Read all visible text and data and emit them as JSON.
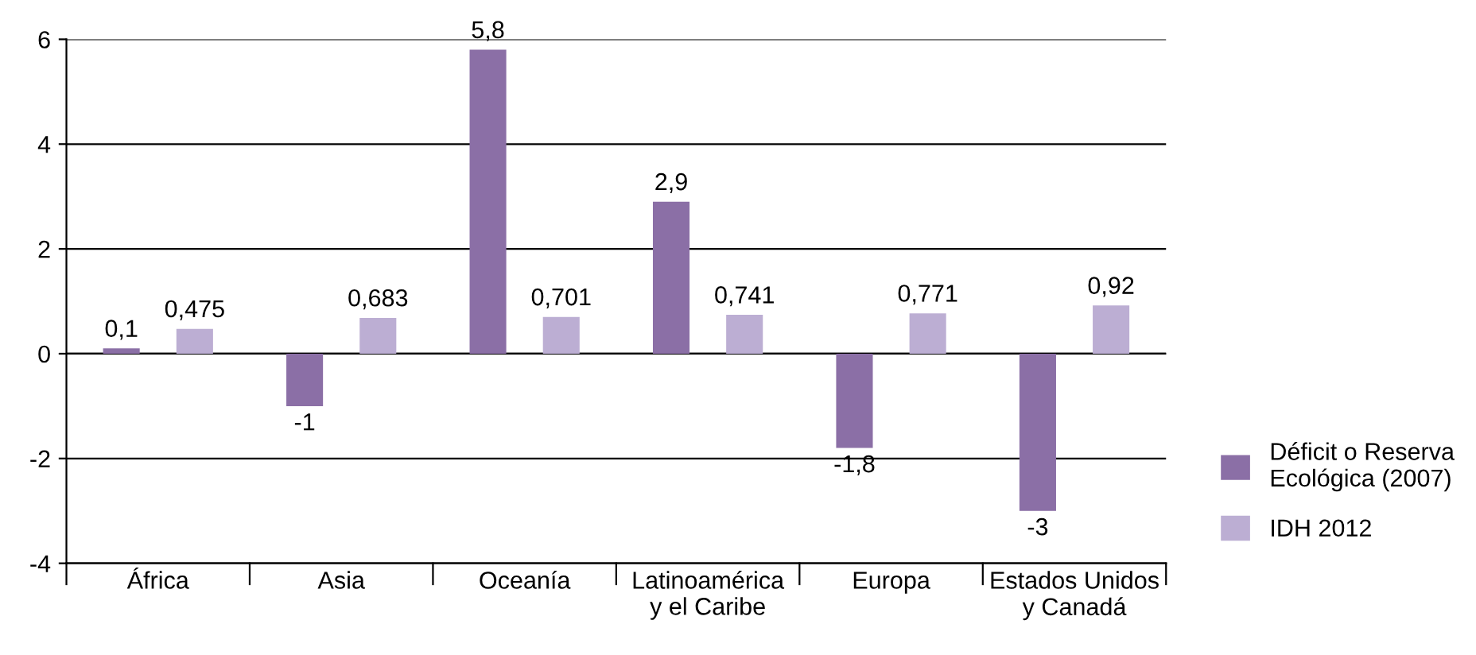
{
  "chart_data": {
    "type": "bar",
    "categories": [
      "África",
      "Asia",
      "Oceanía",
      "Latinoamérica\ny el Caribe",
      "Europa",
      "Estados Unidos\ny Canadá"
    ],
    "series": [
      {
        "name": "Déficit o Reserva\nEcológica (2007)",
        "color": "#8b6fa6",
        "values": [
          0.1,
          -1,
          5.8,
          2.9,
          -1.8,
          -3
        ],
        "value_labels": [
          "0,1",
          "-1",
          "5,8",
          "2,9",
          "-1,8",
          "-3"
        ]
      },
      {
        "name": "IDH 2012",
        "color": "#bcaed3",
        "values": [
          0.475,
          0.683,
          0.701,
          0.741,
          0.771,
          0.92
        ],
        "value_labels": [
          "0,475",
          "0,683",
          "0,701",
          "0,741",
          "0,771",
          "0,92"
        ]
      }
    ],
    "ylim": [
      -4,
      6
    ],
    "yticks": [
      -4,
      -2,
      0,
      2,
      4,
      6
    ],
    "grid": "y",
    "legend": "bottom right"
  }
}
